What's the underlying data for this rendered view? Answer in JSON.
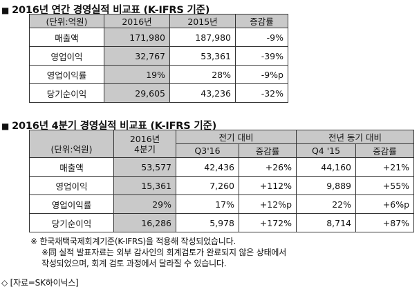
{
  "table1": {
    "title": "2016년 연간 경영실적 비교표 (K-IFRS 기준)",
    "bullet": "■",
    "headers": [
      "(단위:억원)",
      "2016년",
      "2015년",
      "증감률"
    ],
    "rows": [
      {
        "label": "매출액",
        "v2016": "171,980",
        "v2015": "187,980",
        "change": "-9%"
      },
      {
        "label": "영업이익",
        "v2016": "32,767",
        "v2015": "53,361",
        "change": "-39%"
      },
      {
        "label": "영업이익률",
        "v2016": "19%",
        "v2015": "28%",
        "change": "-9%p"
      },
      {
        "label": "당기순이익",
        "v2016": "29,605",
        "v2015": "43,236",
        "change": "-32%"
      }
    ]
  },
  "table2": {
    "title": "2016년 4분기 경영실적 비교표 (K-IFRS 기준)",
    "bullet": "■",
    "unit_header": "(단위:억원)",
    "q4_header": "2016년\n4분기",
    "prev_q_group": "전기 대비",
    "prev_y_group": "전년 동기 대비",
    "q3_header": "Q3'16",
    "change_header_1": "증감률",
    "q4_15_header": "Q4 '15",
    "change_header_2": "증감률",
    "rows": [
      {
        "label": "매출액",
        "q4_16": "53,577",
        "q3_16": "42,436",
        "qoq": "+26%",
        "q4_15": "44,160",
        "yoy": "+21%"
      },
      {
        "label": "영업이익",
        "q4_16": "15,361",
        "q3_16": "7,260",
        "qoq": "+112%",
        "q4_15": "9,889",
        "yoy": "+55%"
      },
      {
        "label": "영업이익률",
        "q4_16": "29%",
        "q3_16": "17%",
        "qoq": "+12%p",
        "q4_15": "22%",
        "yoy": "+6%p"
      },
      {
        "label": "당기순이익",
        "q4_16": "16,286",
        "q3_16": "5,978",
        "qoq": "+172%",
        "q4_15": "8,714",
        "yoy": "+87%"
      }
    ]
  },
  "notes": {
    "line1": "※ 한국채택국제회계기준(K-IFRS)을 적용해 작성되었습니다.",
    "line2": "※同 실적 발표자료는 외부 감사인의 회계검토가 완료되지 않은 상태에서",
    "line3": "작성되었으며, 회계 검토 과정에서 달라질 수 있습니다.",
    "source": "◇ [자료=SK하이닉스]"
  }
}
